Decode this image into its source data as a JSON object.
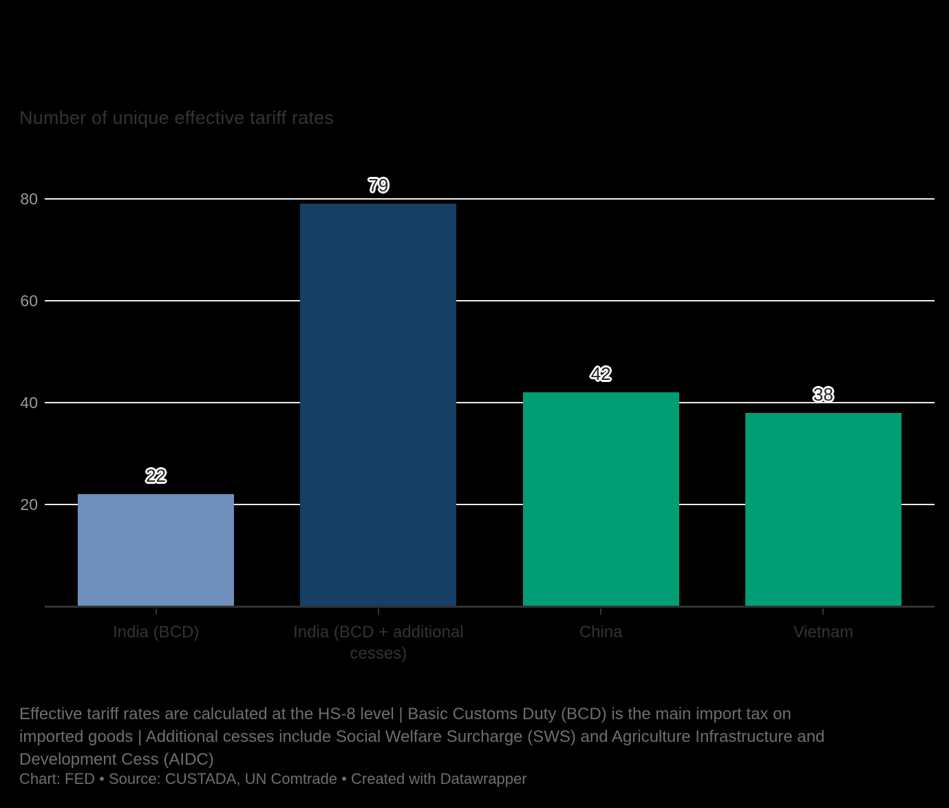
{
  "colors": {
    "background": "#000000",
    "grid": "#EFEFEF",
    "axis_baseline": "#333333",
    "ytick_label": "#9A9A9A",
    "category_label": "#333333",
    "value_label": "#222222",
    "value_label_halo": "#FFFFFF",
    "title": "#333333",
    "notes": "#6E6E6E"
  },
  "chart": {
    "title": "Number of unique effective tariff rates",
    "notes_lines": [
      "Effective tariff rates are calculated at the HS-8 level | Basic Customs Duty (BCD) is the main import tax on",
      "imported goods | Additional cesses include Social Welfare Surcharge (SWS) and Agriculture Infrastructure and",
      "Development Cess (AIDC)"
    ],
    "attribution": "Chart: FED • Source: CUSTADA, UN Comtrade • Created with Datawrapper"
  },
  "chart_data": {
    "type": "bar",
    "title": "Number of unique effective tariff rates",
    "categories": [
      "India (BCD)",
      "India (BCD + additional cesses)",
      "China",
      "Vietnam"
    ],
    "category_tick_labels": [
      "India (BCD)",
      "India (BCD + additional\ncesses)",
      "China",
      "Vietnam"
    ],
    "values": [
      22,
      79,
      42,
      38
    ],
    "bar_colors": [
      "#6F90BC",
      "#153F63",
      "#009E75",
      "#009E75"
    ],
    "yticks": [
      20,
      40,
      60,
      80
    ],
    "ylim": [
      0,
      80
    ],
    "xlabel": "",
    "ylabel": "Number of unique effective tariff rates",
    "grid": "on",
    "legend": "none",
    "value_labels_shown": true
  }
}
